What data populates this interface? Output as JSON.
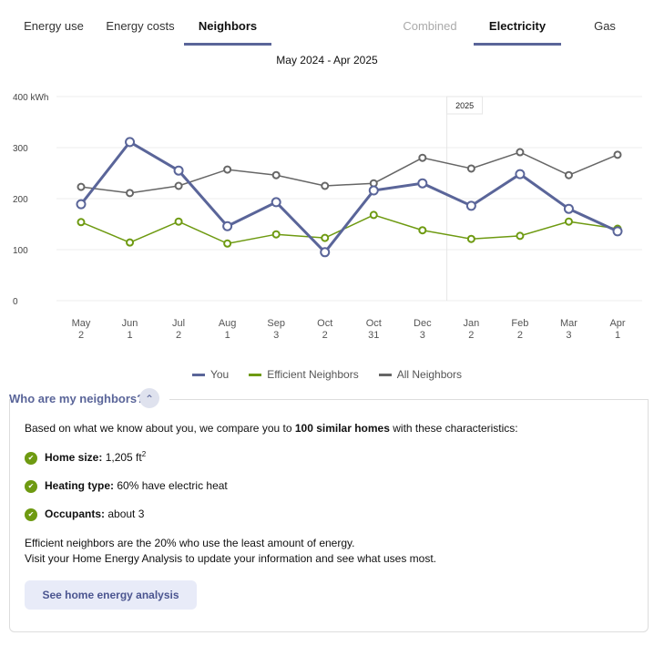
{
  "tabs": [
    {
      "label": "Energy use"
    },
    {
      "label": "Energy costs"
    },
    {
      "label": "Neighbors",
      "active": true
    }
  ],
  "fuel_tabs": [
    {
      "label": "Combined",
      "disabled": true
    },
    {
      "label": "Electricity",
      "active": true
    },
    {
      "label": "Gas"
    }
  ],
  "period": "May 2024 - Apr 2025",
  "chart_data": {
    "type": "line",
    "ylabel": "kWh",
    "ylim": [
      0,
      400
    ],
    "yticks": [
      "0",
      "100",
      "200",
      "300",
      "400 kWh"
    ],
    "grid": true,
    "year_marker": "2025",
    "categories": [
      [
        "May",
        "2"
      ],
      [
        "Jun",
        "1"
      ],
      [
        "Jul",
        "2"
      ],
      [
        "Aug",
        "1"
      ],
      [
        "Sep",
        "3"
      ],
      [
        "Oct",
        "2"
      ],
      [
        "Oct",
        "31"
      ],
      [
        "Dec",
        "3"
      ],
      [
        "Jan",
        "2"
      ],
      [
        "Feb",
        "2"
      ],
      [
        "Mar",
        "3"
      ],
      [
        "Apr",
        "1"
      ]
    ],
    "series": [
      {
        "name": "All Neighbors",
        "color": "#666666",
        "values": [
          223,
          211,
          225,
          257,
          246,
          225,
          230,
          280,
          259,
          291,
          246,
          286
        ]
      },
      {
        "name": "Efficient Neighbors",
        "color": "#6e9a11",
        "values": [
          154,
          114,
          155,
          112,
          130,
          123,
          168,
          138,
          121,
          127,
          155,
          141
        ]
      },
      {
        "name": "You",
        "color": "#5a6599",
        "values": [
          189,
          311,
          255,
          146,
          193,
          95,
          216,
          230,
          186,
          248,
          180,
          136
        ]
      }
    ],
    "legend_order": [
      "You",
      "Efficient Neighbors",
      "All Neighbors"
    ],
    "legend": "bottom"
  },
  "neighbors": {
    "title": "Who are my neighbors?",
    "intro_pre": "Based on what we know about you, we compare you to ",
    "intro_bold": "100 similar homes",
    "intro_post": " with these characteristics:",
    "items": [
      {
        "label": "Home size:",
        "value": " 1,205 ft",
        "sup": "2"
      },
      {
        "label": "Heating type:",
        "value": " 60% have electric heat"
      },
      {
        "label": "Occupants:",
        "value": " about 3"
      }
    ],
    "note1": "Efficient neighbors are the 20% who use the least amount of energy.",
    "note2": "Visit your Home Energy Analysis to update your information and see what uses most.",
    "button": "See home energy analysis"
  }
}
